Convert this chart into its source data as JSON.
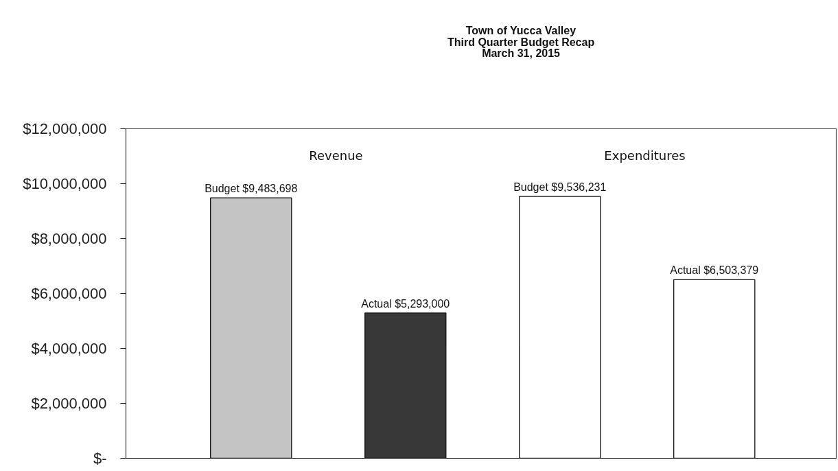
{
  "chart_data": {
    "type": "bar",
    "title": "Town of Yucca Valley",
    "subtitle": "Third Quarter Budget Recap\nMarch 31, 2015",
    "categories": [
      null,
      null,
      null,
      null
    ],
    "values": [
      9483698,
      5293000,
      9536231,
      6503379
    ],
    "colors": [
      "#c4c4c4",
      "#383838",
      "#ffffff",
      "#ffffff"
    ],
    "value_labels": [
      "Budget $9,483,698",
      "Actual $5,293,000",
      "Budget $9,536,231",
      "Actual $6,503,379"
    ],
    "annotations": [
      "Revenue",
      "Expenditures"
    ],
    "ylim": [
      0,
      12000000
    ],
    "yticks": [
      {
        "value": 0,
        "label": "$-"
      },
      {
        "value": 2000000,
        "label": "$2,000,000"
      },
      {
        "value": 4000000,
        "label": "$4,000,000"
      },
      {
        "value": 6000000,
        "label": "$6,000,000"
      },
      {
        "value": 8000000,
        "label": "$8,000,000"
      },
      {
        "value": 10000000,
        "label": "$10,000,000"
      },
      {
        "value": 12000000,
        "label": "$12,000,000"
      }
    ],
    "tick_labels": "y",
    "grid": false
  }
}
